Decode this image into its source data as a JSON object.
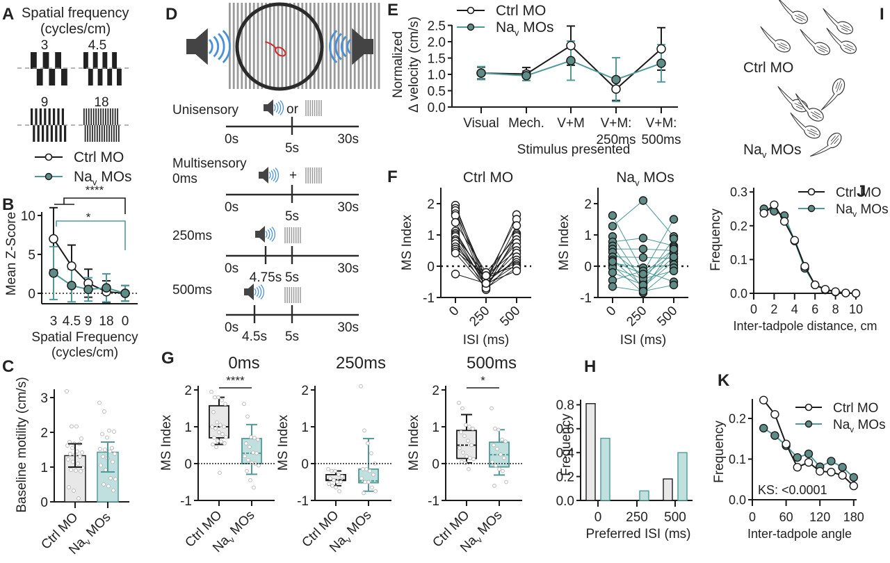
{
  "colors": {
    "ctrl_line": "#1a1a1a",
    "ctrl_fill": "#ffffff",
    "nav_line": "#4f9a97",
    "nav_fill": "#5f8c86",
    "ctrl_bar": "#e8e8e8",
    "nav_bar": "#bfe0de",
    "speaker": "#444444",
    "sound_wave": "#4a90d9",
    "tadpole_red": "#d62828",
    "grating": "#9a9a9a"
  },
  "legend": {
    "ctrl": "Ctrl MO",
    "nav_base": "Na",
    "nav_sub": "v",
    "nav_rest": " MOs"
  },
  "panels": {
    "A": {
      "label": "A",
      "title_line1": "Spatial frequency",
      "title_line2": "(cycles/cm)",
      "gratings": [
        "3",
        "4.5",
        "9",
        "18"
      ]
    },
    "D": {
      "label": "D",
      "unisensory": "Unisensory",
      "or": "or",
      "multisensory": "Multisensory",
      "ms0": "0ms",
      "plus": "+",
      "ms250": "250ms",
      "ms500": "500ms",
      "t0": "0s",
      "t5": "5s",
      "t30": "30s",
      "t475": "4.75s",
      "t45": "4.5s"
    },
    "I": {
      "label": "I",
      "ctrl": "Ctrl MO",
      "nav_base": "Na",
      "nav_sub": "v",
      "nav_rest": " MOs"
    }
  },
  "chart_data": [
    {
      "id": "B",
      "label": "B",
      "type": "line",
      "categories": [
        "3",
        "4.5",
        "9",
        "18",
        "0"
      ],
      "xlabel": "Spatial Frequency",
      "xlabel2": "(cycles/cm)",
      "ylabel": "Mean Z-Score",
      "ylim": [
        -2,
        11
      ],
      "yticks": [
        0,
        5,
        10
      ],
      "series": [
        {
          "name": "Ctrl MO",
          "values": [
            7.0,
            3.5,
            1.3,
            0.2,
            0.0
          ],
          "err": [
            4.0,
            2.7,
            1.8,
            1.4,
            1.0
          ]
        },
        {
          "name": "Nav MOs",
          "values": [
            2.6,
            1.0,
            0.5,
            0.7,
            0.0
          ],
          "err": [
            3.4,
            2.1,
            1.5,
            1.8,
            1.0
          ]
        }
      ],
      "annotations": [
        {
          "text": "****",
          "between": [
            "3 & 4.5",
            "0"
          ],
          "color": "ctrl"
        },
        {
          "text": "*",
          "between": [
            "3",
            "0"
          ],
          "color": "nav"
        }
      ]
    },
    {
      "id": "C",
      "label": "C",
      "type": "bar",
      "categories": [
        "Ctrl MO",
        "Nav MOs"
      ],
      "ylabel": "Baseline motility (cm/s)",
      "ylim": [
        0,
        3.2
      ],
      "yticks": [
        0,
        1,
        2,
        3
      ],
      "values": [
        1.33,
        1.43
      ],
      "err_low": [
        1.0,
        0.86
      ],
      "err_high": [
        1.67,
        1.72
      ],
      "points": [
        [
          3.18,
          2.17,
          2.17,
          1.82,
          1.72,
          1.67,
          1.67,
          1.62,
          1.55,
          1.45,
          1.42,
          1.38,
          1.36,
          1.3,
          1.22,
          1.15,
          1.1,
          0.98,
          0.92,
          0.9,
          0.88,
          0.42,
          0.32,
          0.1
        ],
        [
          2.85,
          2.6,
          2.05,
          2.02,
          1.95,
          1.85,
          1.55,
          1.52,
          1.5,
          1.45,
          1.38,
          1.3,
          1.25,
          1.15,
          1.05,
          0.92,
          0.68,
          0.65,
          0.5,
          0.45,
          0.33
        ]
      ]
    },
    {
      "id": "E",
      "label": "E",
      "type": "line",
      "categories": [
        "Visual",
        "Mech.",
        "V+M",
        "V+M:\n250ms",
        "V+M:\n500ms"
      ],
      "xlabel": "Stimulus presented",
      "ylabel": "Normalized",
      "ylabel2": "Δ velocity (cm/s)",
      "ylim": [
        0,
        2.5
      ],
      "yticks": [
        "0.0",
        "0.5",
        "1.0",
        "1.5",
        "2.0",
        "2.5"
      ],
      "series": [
        {
          "name": "Ctrl MO",
          "values": [
            1.04,
            1.01,
            1.88,
            0.55,
            1.78
          ],
          "err": [
            0.18,
            0.2,
            0.6,
            0.35,
            0.65
          ]
        },
        {
          "name": "Nav MOs",
          "values": [
            1.04,
            0.96,
            1.42,
            0.84,
            1.34
          ],
          "err": [
            0.2,
            0.15,
            0.6,
            0.67,
            0.57
          ]
        }
      ]
    },
    {
      "id": "F1",
      "label": "F",
      "type": "scatter",
      "title": "Ctrl MO",
      "categories": [
        "0",
        "250",
        "500"
      ],
      "xlabel": "ISI (ms)",
      "ylabel": "MS Index",
      "ylim": [
        -1,
        2.5
      ],
      "yticks": [
        -1,
        0,
        1,
        2
      ],
      "paired": [
        [
          1.95,
          -0.55,
          1.65
        ],
        [
          1.85,
          -0.4,
          1.5
        ],
        [
          1.78,
          -0.6,
          1.3
        ],
        [
          1.68,
          -0.35,
          1.05
        ],
        [
          1.62,
          -0.7,
          1.0
        ],
        [
          1.4,
          -0.2,
          0.95
        ],
        [
          1.12,
          -0.5,
          0.85
        ],
        [
          1.05,
          -0.45,
          0.75
        ],
        [
          1.0,
          -0.65,
          0.62
        ],
        [
          0.95,
          -0.3,
          0.5
        ],
        [
          0.85,
          -0.55,
          0.42
        ],
        [
          0.8,
          -0.75,
          0.3
        ],
        [
          0.72,
          -0.5,
          0.2
        ],
        [
          0.62,
          -0.4,
          0.12
        ],
        [
          0.55,
          -0.6,
          0.05
        ],
        [
          0.48,
          -0.3,
          0.0
        ],
        [
          0.42,
          -0.7,
          -0.05
        ],
        [
          -0.25,
          -0.55,
          -0.15
        ]
      ]
    },
    {
      "id": "F2",
      "label": "",
      "type": "scatter",
      "title_base": "Na",
      "title_sub": "v",
      "title_rest": " MOs",
      "categories": [
        "0",
        "250",
        "500"
      ],
      "xlabel": "ISI (ms)",
      "ylabel": "MS Index",
      "ylim": [
        -1,
        2.5
      ],
      "yticks": [
        -1,
        0,
        1,
        2
      ],
      "paired": [
        [
          1.62,
          -0.2,
          1.5
        ],
        [
          1.28,
          2.1,
          0.95
        ],
        [
          0.95,
          -0.5,
          0.88
        ],
        [
          0.78,
          0.9,
          0.65
        ],
        [
          0.65,
          -0.75,
          0.6
        ],
        [
          0.55,
          0.55,
          0.5
        ],
        [
          0.45,
          -0.3,
          0.4
        ],
        [
          0.3,
          0.28,
          0.25
        ],
        [
          0.2,
          -0.65,
          0.15
        ],
        [
          0.1,
          -0.05,
          0.05
        ],
        [
          0.02,
          -0.85,
          -0.05
        ],
        [
          -0.05,
          -0.4,
          -0.15
        ],
        [
          -0.2,
          -0.6,
          0.3
        ],
        [
          -0.45,
          -0.15,
          -0.5
        ],
        [
          -0.65,
          -0.8,
          -0.6
        ],
        [
          0.15,
          -0.25,
          0.55
        ]
      ]
    },
    {
      "id": "G0",
      "label": "G",
      "type": "box",
      "title": "0ms",
      "categories": [
        "Ctrl MO",
        "Nav MOs"
      ],
      "ylabel": "MS Index",
      "ylim": [
        -1,
        2
      ],
      "yticks": [
        -1,
        0,
        1,
        2
      ],
      "sig": "****",
      "boxes": [
        {
          "min": 0.52,
          "q1": 0.7,
          "median": 1.0,
          "q3": 1.57,
          "max": 1.8,
          "points": [
            1.95,
            1.8,
            1.8,
            1.72,
            1.62,
            1.4,
            1.12,
            1.05,
            1.0,
            1.0,
            0.95,
            0.85,
            0.8,
            0.72,
            0.7,
            0.62,
            0.6,
            0.55,
            0.52,
            0.45,
            -0.25
          ]
        },
        {
          "min": -0.29,
          "q1": 0.0,
          "median": 0.28,
          "q3": 0.68,
          "max": 1.06,
          "points": [
            1.62,
            1.28,
            0.72,
            0.7,
            0.65,
            0.55,
            0.45,
            0.3,
            0.28,
            0.2,
            0.1,
            0.02,
            0.0,
            -0.05,
            -0.2,
            -0.45,
            -0.65
          ]
        }
      ]
    },
    {
      "id": "G250",
      "label": "",
      "type": "box",
      "title": "250ms",
      "categories": [
        "Ctrl MO",
        "Nav MOs"
      ],
      "ylabel": "MS Index",
      "ylim": [
        -1,
        2
      ],
      "yticks": [
        -1,
        0,
        1,
        2
      ],
      "boxes": [
        {
          "min": -0.6,
          "q1": -0.46,
          "median": -0.44,
          "q3": -0.3,
          "max": -0.2,
          "points": [
            -0.15,
            -0.2,
            -0.2,
            -0.3,
            -0.35,
            -0.4,
            -0.45,
            -0.5,
            -0.5,
            -0.55,
            -0.6,
            -0.65,
            -0.75
          ]
        },
        {
          "min": -0.75,
          "q1": -0.52,
          "median": -0.47,
          "q3": -0.15,
          "max": 0.68,
          "points": [
            2.1,
            0.9,
            0.55,
            0.28,
            0.0,
            -0.15,
            -0.15,
            -0.2,
            -0.3,
            -0.4,
            -0.5,
            -0.5,
            -0.65,
            -0.75,
            -0.8
          ]
        }
      ]
    },
    {
      "id": "G500",
      "label": "",
      "type": "box",
      "title": "500ms",
      "categories": [
        "Ctrl MO",
        "Nav MOs"
      ],
      "ylabel": "MS Index",
      "ylim": [
        -1,
        2
      ],
      "yticks": [
        -1,
        0,
        1,
        2
      ],
      "sig": "*",
      "boxes": [
        {
          "min": 0.02,
          "q1": 0.14,
          "median": 0.5,
          "q3": 0.9,
          "max": 1.33,
          "points": [
            1.65,
            1.5,
            1.05,
            1.0,
            0.95,
            0.85,
            0.75,
            0.62,
            0.5,
            0.42,
            0.3,
            0.2,
            0.15,
            0.12,
            0.05,
            0.02,
            -0.15
          ]
        },
        {
          "min": -0.31,
          "q1": -0.09,
          "median": 0.24,
          "q3": 0.58,
          "max": 0.92,
          "points": [
            1.5,
            0.95,
            0.92,
            0.65,
            0.6,
            0.5,
            0.4,
            0.25,
            0.15,
            0.05,
            -0.05,
            -0.15,
            -0.2,
            -0.5,
            -0.6
          ]
        }
      ]
    },
    {
      "id": "H",
      "label": "H",
      "type": "bar",
      "categories": [
        "0",
        "250",
        "500"
      ],
      "xlabel": "Preferred ISI (ms)",
      "ylabel": "Frequency",
      "ylim": [
        0,
        0.85
      ],
      "yticks": [
        "0.0",
        "0.2",
        "0.4",
        "0.6",
        "0.8"
      ],
      "series": [
        {
          "name": "Ctrl MO",
          "values": [
            0.81,
            0.0,
            0.18
          ]
        },
        {
          "name": "Nav MOs",
          "values": [
            0.52,
            0.08,
            0.4
          ]
        }
      ]
    },
    {
      "id": "J",
      "label": "J",
      "type": "line",
      "xlabel": "Inter-tadpole distance, cm",
      "ylabel": "Frequency",
      "xlim": [
        0,
        10
      ],
      "ylim": [
        0,
        0.3
      ],
      "xticks": [
        0,
        2,
        4,
        6,
        8,
        10
      ],
      "yticks": [
        "0.0",
        "0.1",
        "0.2",
        "0.3"
      ],
      "series": [
        {
          "name": "Ctrl MO",
          "x": [
            1,
            2,
            3,
            4,
            5,
            6,
            7,
            8,
            9,
            10
          ],
          "values": [
            0.237,
            0.262,
            0.213,
            0.157,
            0.08,
            0.025,
            0.012,
            0.005,
            0.001,
            0.0
          ]
        },
        {
          "name": "Nav MOs",
          "x": [
            1,
            2,
            3,
            4,
            5,
            6,
            7,
            8,
            9,
            10
          ],
          "values": [
            0.25,
            0.243,
            0.23,
            0.155,
            0.074,
            0.025,
            0.01,
            0.004,
            0.001,
            0.0
          ]
        }
      ]
    },
    {
      "id": "K",
      "label": "K",
      "type": "line",
      "xlabel": "Inter-tadpole angle",
      "ylabel": "Frequency",
      "xlim": [
        0,
        180
      ],
      "ylim": [
        0,
        0.25
      ],
      "xticks": [
        0,
        60,
        120,
        180
      ],
      "yticks": [
        "0.0",
        "0.1",
        "0.2"
      ],
      "annotation": "KS: <0.0001",
      "series": [
        {
          "name": "Ctrl MO",
          "x": [
            20,
            40,
            60,
            80,
            100,
            120,
            140,
            160,
            180
          ],
          "values": [
            0.245,
            0.21,
            0.137,
            0.08,
            0.092,
            0.07,
            0.068,
            0.06,
            0.034
          ]
        },
        {
          "name": "Nav MOs",
          "x": [
            20,
            40,
            60,
            80,
            100,
            120,
            140,
            160,
            180
          ],
          "values": [
            0.176,
            0.158,
            0.133,
            0.104,
            0.113,
            0.081,
            0.095,
            0.08,
            0.055
          ]
        }
      ]
    }
  ]
}
